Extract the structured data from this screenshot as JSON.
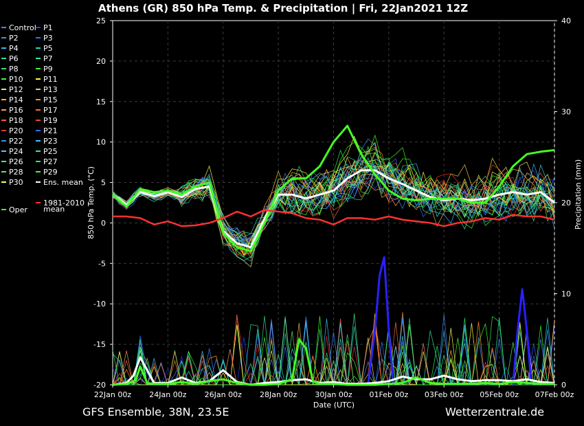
{
  "chart_data": {
    "type": "line",
    "title": "Athens  (GR)  850 hPa Temp. & Precipitation | Fri, 22Jan2021 12Z",
    "ylabel": "850 hPa Temp. (°C)",
    "y2label": "Precipitation (mm)",
    "xlabel": "Date (UTC)",
    "ylim": [
      -20,
      25
    ],
    "y2lim": [
      0,
      40
    ],
    "yticks": [
      25,
      20,
      15,
      10,
      5,
      0,
      -5,
      -10,
      -15,
      -20
    ],
    "y2ticks": [
      40,
      30,
      20,
      10,
      0
    ],
    "xlim_hours": [
      0,
      384
    ],
    "xticks": [
      "22Jan 00z",
      "24Jan 00z",
      "26Jan 00z",
      "28Jan 00z",
      "30Jan 00z",
      "01Feb 00z",
      "03Feb 00z",
      "05Feb 00z",
      "07Feb 00z"
    ],
    "grid": true,
    "legend_placement": "left",
    "legend": [
      {
        "name": "Control",
        "color": "#4d88ff"
      },
      {
        "name": "P1",
        "color": "#2a3cff"
      },
      {
        "name": "P2",
        "color": "#3f8cff"
      },
      {
        "name": "P3",
        "color": "#3d6dff"
      },
      {
        "name": "P4",
        "color": "#3fb4ff"
      },
      {
        "name": "P5",
        "color": "#27d6c8"
      },
      {
        "name": "P6",
        "color": "#2fe0a0"
      },
      {
        "name": "P7",
        "color": "#2ee8a8"
      },
      {
        "name": "P8",
        "color": "#36e07a"
      },
      {
        "name": "P9",
        "color": "#4ef040"
      },
      {
        "name": "P10",
        "color": "#44ff22"
      },
      {
        "name": "P11",
        "color": "#ffff40"
      },
      {
        "name": "P12",
        "color": "#f4e470"
      },
      {
        "name": "P13",
        "color": "#f0d040"
      },
      {
        "name": "P14",
        "color": "#ffb040"
      },
      {
        "name": "P15",
        "color": "#ff9a20"
      },
      {
        "name": "P16",
        "color": "#ff9a6a"
      },
      {
        "name": "P17",
        "color": "#ff6a40"
      },
      {
        "name": "P18",
        "color": "#ff5a3a"
      },
      {
        "name": "P19",
        "color": "#e84a30"
      },
      {
        "name": "P20",
        "color": "#ff3030"
      },
      {
        "name": "P21",
        "color": "#3070ff"
      },
      {
        "name": "P22",
        "color": "#3a90ff"
      },
      {
        "name": "P23",
        "color": "#40c4ff"
      },
      {
        "name": "P24",
        "color": "#40d8e8"
      },
      {
        "name": "P25",
        "color": "#30e8b0"
      },
      {
        "name": "P26",
        "color": "#40f090"
      },
      {
        "name": "P27",
        "color": "#30f060"
      },
      {
        "name": "P28",
        "color": "#50f070"
      },
      {
        "name": "P29",
        "color": "#40ff30"
      },
      {
        "name": "P30",
        "color": "#ffff50"
      },
      {
        "name": "Ens. mean",
        "color": "#ffffff"
      },
      {
        "name": "1981-2010\nmean",
        "color": "#ff3030"
      },
      {
        "name": "Oper",
        "color": "#44ff22"
      }
    ],
    "series": [
      {
        "name": "Ens. mean",
        "axis": "temp",
        "x": [
          0,
          12,
          24,
          36,
          48,
          60,
          72,
          84,
          96,
          108,
          120,
          132,
          144,
          156,
          168,
          180,
          192,
          204,
          216,
          228,
          240,
          252,
          264,
          276,
          288,
          300,
          312,
          324,
          336,
          348,
          360,
          372,
          384
        ],
        "values": [
          3.5,
          2.2,
          3.8,
          3.3,
          3.8,
          3.2,
          4.2,
          4.5,
          -1.0,
          -2.5,
          -3.0,
          0.5,
          3.5,
          3.5,
          3.0,
          3.5,
          4.0,
          5.5,
          6.5,
          6.5,
          5.5,
          4.8,
          4.0,
          3.2,
          2.8,
          3.0,
          2.8,
          3.0,
          3.5,
          3.8,
          3.5,
          3.8,
          2.5
        ]
      },
      {
        "name": "Oper",
        "axis": "temp",
        "x": [
          0,
          12,
          24,
          36,
          48,
          60,
          72,
          84,
          96,
          108,
          120,
          132,
          144,
          156,
          168,
          180,
          192,
          204,
          216,
          228,
          240,
          252,
          264,
          276,
          288,
          300,
          312,
          324,
          336,
          348,
          360,
          372,
          384
        ],
        "values": [
          3.5,
          2.0,
          4.2,
          3.8,
          4.0,
          3.5,
          4.5,
          5.0,
          -1.2,
          -3.0,
          -3.5,
          0.0,
          4.0,
          5.5,
          5.5,
          7.0,
          10.0,
          12.0,
          8.5,
          6.0,
          4.0,
          3.0,
          2.8,
          3.0,
          3.0,
          3.0,
          2.5,
          2.5,
          4.5,
          7.0,
          8.5,
          8.8,
          9.0
        ]
      },
      {
        "name": "1981-2010 mean",
        "axis": "temp",
        "x": [
          0,
          12,
          24,
          36,
          48,
          60,
          72,
          84,
          96,
          108,
          120,
          132,
          144,
          156,
          168,
          180,
          192,
          204,
          216,
          228,
          240,
          252,
          264,
          276,
          288,
          300,
          312,
          324,
          336,
          348,
          360,
          372,
          384
        ],
        "values": [
          0.8,
          0.8,
          0.6,
          -0.2,
          0.2,
          -0.4,
          -0.3,
          0.0,
          0.6,
          1.4,
          0.8,
          1.6,
          1.4,
          1.2,
          0.6,
          0.4,
          -0.2,
          0.6,
          0.6,
          0.4,
          0.8,
          0.4,
          0.2,
          0.0,
          -0.4,
          0.0,
          0.2,
          0.6,
          0.4,
          1.0,
          0.8,
          0.8,
          0.4
        ]
      },
      {
        "name": "P1",
        "axis": "precip",
        "x": [
          222,
          228,
          232,
          236,
          240,
          244
        ],
        "values": [
          0,
          6,
          12,
          14,
          6,
          0
        ]
      },
      {
        "name": "P1",
        "axis": "precip",
        "x": [
          348,
          352,
          356,
          360,
          364
        ],
        "values": [
          0,
          6,
          10.5,
          6,
          0
        ]
      },
      {
        "name": "Ens. mean",
        "axis": "precip",
        "x": [
          0,
          12,
          18,
          24,
          36,
          48,
          60,
          72,
          84,
          96,
          108,
          120,
          132,
          144,
          156,
          168,
          180,
          192,
          204,
          216,
          228,
          240,
          252,
          264,
          276,
          288,
          300,
          312,
          324,
          336,
          348,
          360,
          372,
          384
        ],
        "values": [
          0,
          0.2,
          1.0,
          3.0,
          0.2,
          0.2,
          0.8,
          0.2,
          0.4,
          1.6,
          0.3,
          0.0,
          0.2,
          0.3,
          0.5,
          0.6,
          0.2,
          0.3,
          0.1,
          0.1,
          0.2,
          0.4,
          0.9,
          0.6,
          0.6,
          1.0,
          0.6,
          0.4,
          0.5,
          0.5,
          0.4,
          0.6,
          0.3,
          0.2
        ]
      },
      {
        "name": "Oper",
        "axis": "precip",
        "x": [
          0,
          12,
          20,
          24,
          30,
          36,
          48,
          60,
          72,
          84,
          96,
          108,
          120,
          132,
          144,
          156,
          162,
          168,
          174,
          180,
          192,
          204,
          216,
          228,
          240,
          252,
          264,
          276,
          288,
          300,
          312,
          324,
          336,
          348,
          360,
          372,
          384
        ],
        "values": [
          0,
          0.1,
          0.5,
          2.0,
          0.2,
          0.1,
          0.1,
          0.3,
          0.1,
          0.4,
          0.6,
          0.2,
          0.0,
          0.0,
          0.1,
          0.6,
          5.0,
          4.0,
          0.4,
          0.1,
          0.1,
          0.0,
          0.0,
          0.0,
          0.1,
          0.2,
          0.8,
          0.2,
          0.1,
          0.1,
          0.1,
          0.2,
          0.1,
          0.3,
          0.2,
          0.1,
          0.1
        ]
      }
    ],
    "member_count": 30
  },
  "footer": {
    "left": "GFS Ensemble, 38N, 23.5E",
    "right": "Wetterzentrale.de"
  }
}
